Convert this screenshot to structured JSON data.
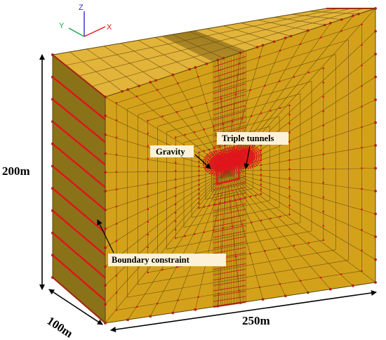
{
  "axes": {
    "x_label": "X",
    "y_label": "Y",
    "z_label": "Z"
  },
  "dimensions": {
    "height_label": "200m",
    "depth_label": "100m",
    "width_label": "250m"
  },
  "annotations": {
    "gravity": "Gravity",
    "tunnels": "Triple tunnels",
    "boundary": "Boundary constraint"
  },
  "colors": {
    "soil_front": "#d4a21a",
    "soil_top": "#e2b43a",
    "soil_side": "#8a7219",
    "mesh_line": "#6b5210",
    "node": "#e0141c",
    "label_box": "#fdf2d8",
    "axis_x": "#e0141c",
    "axis_y": "#19a34a",
    "axis_z": "#2a2fd1"
  }
}
